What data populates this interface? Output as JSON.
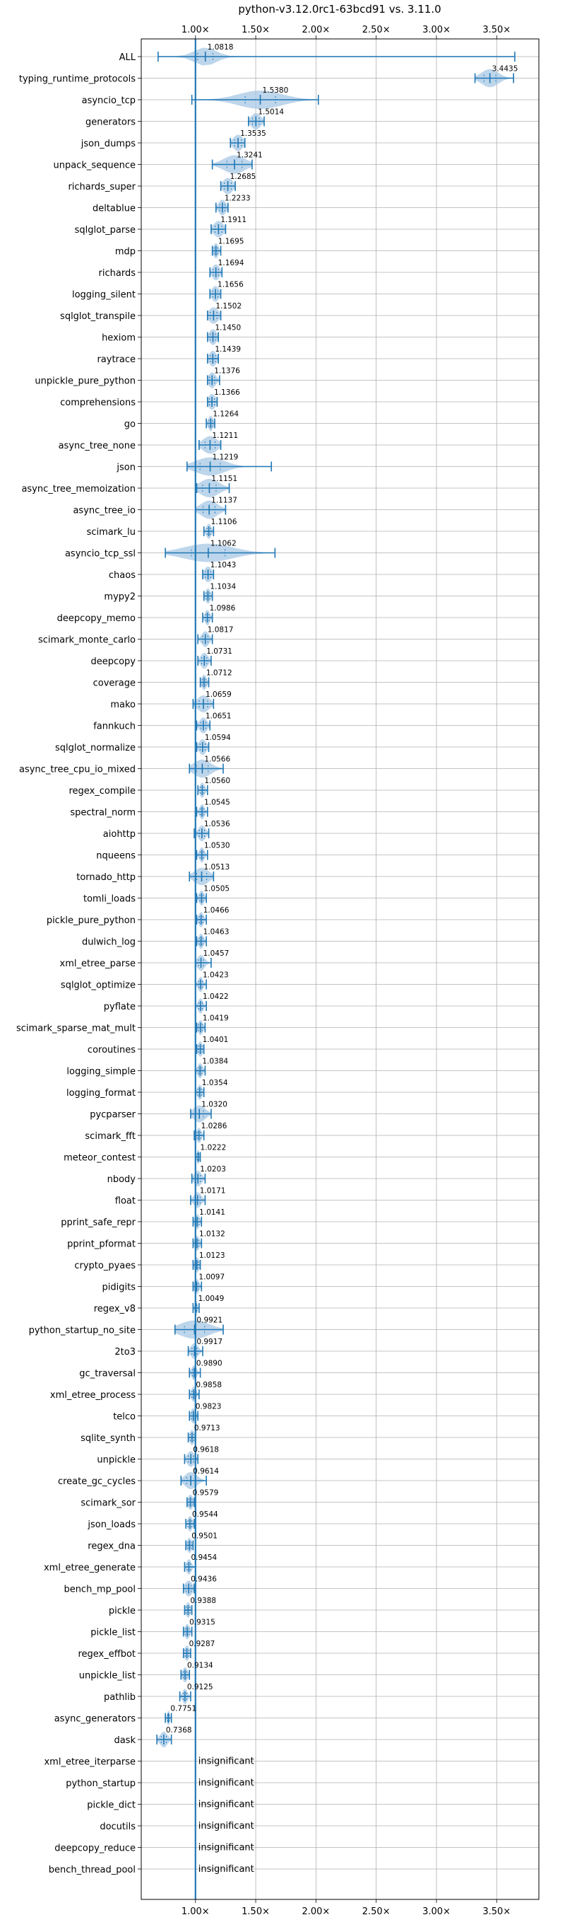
{
  "chart_data": {
    "type": "violin",
    "title": "python-v3.12.0rc1-63bcd91 vs. 3.11.0",
    "xlabel": "",
    "ylabel": "",
    "xlim": [
      0.55,
      3.85
    ],
    "grid": true,
    "reference_line": 1.0,
    "x_ticks": [
      {
        "value": 1.0,
        "label": "1.00×"
      },
      {
        "value": 1.5,
        "label": "1.50×"
      },
      {
        "value": 2.0,
        "label": "2.00×"
      },
      {
        "value": 2.5,
        "label": "2.50×"
      },
      {
        "value": 3.0,
        "label": "3.00×"
      },
      {
        "value": 3.5,
        "label": "3.50×"
      }
    ],
    "insignificant_label": "insignificant",
    "rows": [
      {
        "name": "ALL",
        "label": "1.0818",
        "mean": 1.0818,
        "min": 0.69,
        "max": 3.65,
        "spread": 0.09
      },
      {
        "name": "typing_runtime_protocols",
        "label": "3.4435",
        "mean": 3.4435,
        "min": 3.32,
        "max": 3.64,
        "spread": 0.07
      },
      {
        "name": "asyncio_tcp",
        "label": "1.5380",
        "mean": 1.538,
        "min": 0.97,
        "max": 2.02,
        "spread": 0.18
      },
      {
        "name": "generators",
        "label": "1.5014",
        "mean": 1.5014,
        "min": 1.44,
        "max": 1.57,
        "spread": 0.04
      },
      {
        "name": "json_dumps",
        "label": "1.3535",
        "mean": 1.3535,
        "min": 1.29,
        "max": 1.41,
        "spread": 0.04
      },
      {
        "name": "unpack_sequence",
        "label": "1.3241",
        "mean": 1.3241,
        "min": 1.14,
        "max": 1.47,
        "spread": 0.09
      },
      {
        "name": "richards_super",
        "label": "1.2685",
        "mean": 1.2685,
        "min": 1.21,
        "max": 1.33,
        "spread": 0.04
      },
      {
        "name": "deltablue",
        "label": "1.2233",
        "mean": 1.2233,
        "min": 1.17,
        "max": 1.27,
        "spread": 0.03
      },
      {
        "name": "sqlglot_parse",
        "label": "1.1911",
        "mean": 1.1911,
        "min": 1.13,
        "max": 1.25,
        "spread": 0.04
      },
      {
        "name": "mdp",
        "label": "1.1695",
        "mean": 1.1695,
        "min": 1.14,
        "max": 1.21,
        "spread": 0.02
      },
      {
        "name": "richards",
        "label": "1.1694",
        "mean": 1.1694,
        "min": 1.12,
        "max": 1.22,
        "spread": 0.03
      },
      {
        "name": "logging_silent",
        "label": "1.1656",
        "mean": 1.1656,
        "min": 1.12,
        "max": 1.21,
        "spread": 0.03
      },
      {
        "name": "sqlglot_transpile",
        "label": "1.1502",
        "mean": 1.1502,
        "min": 1.1,
        "max": 1.21,
        "spread": 0.04
      },
      {
        "name": "hexiom",
        "label": "1.1450",
        "mean": 1.145,
        "min": 1.1,
        "max": 1.19,
        "spread": 0.03
      },
      {
        "name": "raytrace",
        "label": "1.1439",
        "mean": 1.1439,
        "min": 1.1,
        "max": 1.19,
        "spread": 0.03
      },
      {
        "name": "unpickle_pure_python",
        "label": "1.1376",
        "mean": 1.1376,
        "min": 1.1,
        "max": 1.2,
        "spread": 0.03
      },
      {
        "name": "comprehensions",
        "label": "1.1366",
        "mean": 1.1366,
        "min": 1.1,
        "max": 1.18,
        "spread": 0.03
      },
      {
        "name": "go",
        "label": "1.1264",
        "mean": 1.1264,
        "min": 1.09,
        "max": 1.16,
        "spread": 0.02
      },
      {
        "name": "async_tree_none",
        "label": "1.1211",
        "mean": 1.1211,
        "min": 1.03,
        "max": 1.21,
        "spread": 0.06
      },
      {
        "name": "json",
        "label": "1.1219",
        "mean": 1.1219,
        "min": 0.93,
        "max": 1.63,
        "spread": 0.12
      },
      {
        "name": "async_tree_memoization",
        "label": "1.1151",
        "mean": 1.1151,
        "min": 1.01,
        "max": 1.28,
        "spread": 0.08
      },
      {
        "name": "async_tree_io",
        "label": "1.1137",
        "mean": 1.1137,
        "min": 1.0,
        "max": 1.25,
        "spread": 0.07
      },
      {
        "name": "scimark_lu",
        "label": "1.1106",
        "mean": 1.1106,
        "min": 1.07,
        "max": 1.15,
        "spread": 0.02
      },
      {
        "name": "asyncio_tcp_ssl",
        "label": "1.1062",
        "mean": 1.1062,
        "min": 0.75,
        "max": 1.66,
        "spread": 0.2
      },
      {
        "name": "chaos",
        "label": "1.1043",
        "mean": 1.1043,
        "min": 1.06,
        "max": 1.15,
        "spread": 0.03
      },
      {
        "name": "mypy2",
        "label": "1.1034",
        "mean": 1.1034,
        "min": 1.07,
        "max": 1.14,
        "spread": 0.02
      },
      {
        "name": "deepcopy_memo",
        "label": "1.0986",
        "mean": 1.0986,
        "min": 1.06,
        "max": 1.14,
        "spread": 0.02
      },
      {
        "name": "scimark_monte_carlo",
        "label": "1.0817",
        "mean": 1.0817,
        "min": 1.02,
        "max": 1.14,
        "spread": 0.03
      },
      {
        "name": "deepcopy",
        "label": "1.0731",
        "mean": 1.0731,
        "min": 1.02,
        "max": 1.13,
        "spread": 0.03
      },
      {
        "name": "coverage",
        "label": "1.0712",
        "mean": 1.0712,
        "min": 1.04,
        "max": 1.11,
        "spread": 0.02
      },
      {
        "name": "mako",
        "label": "1.0659",
        "mean": 1.0659,
        "min": 0.98,
        "max": 1.15,
        "spread": 0.05
      },
      {
        "name": "fannkuch",
        "label": "1.0651",
        "mean": 1.0651,
        "min": 1.01,
        "max": 1.12,
        "spread": 0.03
      },
      {
        "name": "sqlglot_normalize",
        "label": "1.0594",
        "mean": 1.0594,
        "min": 1.01,
        "max": 1.11,
        "spread": 0.03
      },
      {
        "name": "async_tree_cpu_io_mixed",
        "label": "1.0566",
        "mean": 1.0566,
        "min": 0.95,
        "max": 1.23,
        "spread": 0.07
      },
      {
        "name": "regex_compile",
        "label": "1.0560",
        "mean": 1.056,
        "min": 1.02,
        "max": 1.1,
        "spread": 0.02
      },
      {
        "name": "spectral_norm",
        "label": "1.0545",
        "mean": 1.0545,
        "min": 1.01,
        "max": 1.1,
        "spread": 0.02
      },
      {
        "name": "aiohttp",
        "label": "1.0536",
        "mean": 1.0536,
        "min": 0.99,
        "max": 1.11,
        "spread": 0.03
      },
      {
        "name": "nqueens",
        "label": "1.0530",
        "mean": 1.053,
        "min": 1.01,
        "max": 1.1,
        "spread": 0.02
      },
      {
        "name": "tornado_http",
        "label": "1.0513",
        "mean": 1.0513,
        "min": 0.95,
        "max": 1.15,
        "spread": 0.06
      },
      {
        "name": "tomli_loads",
        "label": "1.0505",
        "mean": 1.0505,
        "min": 1.01,
        "max": 1.09,
        "spread": 0.02
      },
      {
        "name": "pickle_pure_python",
        "label": "1.0466",
        "mean": 1.0466,
        "min": 1.01,
        "max": 1.09,
        "spread": 0.02
      },
      {
        "name": "dulwich_log",
        "label": "1.0463",
        "mean": 1.0463,
        "min": 1.01,
        "max": 1.09,
        "spread": 0.02
      },
      {
        "name": "xml_etree_parse",
        "label": "1.0457",
        "mean": 1.0457,
        "min": 1.0,
        "max": 1.13,
        "spread": 0.03
      },
      {
        "name": "sqlglot_optimize",
        "label": "1.0423",
        "mean": 1.0423,
        "min": 1.0,
        "max": 1.09,
        "spread": 0.02
      },
      {
        "name": "pyflate",
        "label": "1.0422",
        "mean": 1.0422,
        "min": 1.0,
        "max": 1.09,
        "spread": 0.02
      },
      {
        "name": "scimark_sparse_mat_mult",
        "label": "1.0419",
        "mean": 1.0419,
        "min": 1.01,
        "max": 1.08,
        "spread": 0.02
      },
      {
        "name": "coroutines",
        "label": "1.0401",
        "mean": 1.0401,
        "min": 1.01,
        "max": 1.07,
        "spread": 0.02
      },
      {
        "name": "logging_simple",
        "label": "1.0384",
        "mean": 1.0384,
        "min": 1.0,
        "max": 1.08,
        "spread": 0.02
      },
      {
        "name": "logging_format",
        "label": "1.0354",
        "mean": 1.0354,
        "min": 1.0,
        "max": 1.07,
        "spread": 0.02
      },
      {
        "name": "pycparser",
        "label": "1.0320",
        "mean": 1.032,
        "min": 0.96,
        "max": 1.13,
        "spread": 0.05
      },
      {
        "name": "scimark_fft",
        "label": "1.0286",
        "mean": 1.0286,
        "min": 0.99,
        "max": 1.07,
        "spread": 0.02
      },
      {
        "name": "meteor_contest",
        "label": "1.0222",
        "mean": 1.0222,
        "min": 1.0,
        "max": 1.04,
        "spread": 0.01
      },
      {
        "name": "nbody",
        "label": "1.0203",
        "mean": 1.0203,
        "min": 0.97,
        "max": 1.08,
        "spread": 0.03
      },
      {
        "name": "float",
        "label": "1.0171",
        "mean": 1.0171,
        "min": 0.96,
        "max": 1.08,
        "spread": 0.03
      },
      {
        "name": "pprint_safe_repr",
        "label": "1.0141",
        "mean": 1.0141,
        "min": 0.98,
        "max": 1.05,
        "spread": 0.02
      },
      {
        "name": "pprint_pformat",
        "label": "1.0132",
        "mean": 1.0132,
        "min": 0.98,
        "max": 1.05,
        "spread": 0.02
      },
      {
        "name": "crypto_pyaes",
        "label": "1.0123",
        "mean": 1.0123,
        "min": 0.98,
        "max": 1.04,
        "spread": 0.02
      },
      {
        "name": "pidigits",
        "label": "1.0097",
        "mean": 1.0097,
        "min": 0.98,
        "max": 1.05,
        "spread": 0.02
      },
      {
        "name": "regex_v8",
        "label": "1.0049",
        "mean": 1.0049,
        "min": 0.98,
        "max": 1.03,
        "spread": 0.01
      },
      {
        "name": "python_startup_no_site",
        "label": "0.9921",
        "mean": 0.9921,
        "min": 0.83,
        "max": 1.23,
        "spread": 0.12
      },
      {
        "name": "2to3",
        "label": "0.9917",
        "mean": 0.9917,
        "min": 0.94,
        "max": 1.06,
        "spread": 0.03
      },
      {
        "name": "gc_traversal",
        "label": "0.9890",
        "mean": 0.989,
        "min": 0.95,
        "max": 1.04,
        "spread": 0.02
      },
      {
        "name": "xml_etree_process",
        "label": "0.9858",
        "mean": 0.9858,
        "min": 0.95,
        "max": 1.03,
        "spread": 0.02
      },
      {
        "name": "telco",
        "label": "0.9823",
        "mean": 0.9823,
        "min": 0.95,
        "max": 1.02,
        "spread": 0.02
      },
      {
        "name": "sqlite_synth",
        "label": "0.9713",
        "mean": 0.9713,
        "min": 0.94,
        "max": 1.0,
        "spread": 0.02
      },
      {
        "name": "unpickle",
        "label": "0.9618",
        "mean": 0.9618,
        "min": 0.91,
        "max": 1.02,
        "spread": 0.03
      },
      {
        "name": "create_gc_cycles",
        "label": "0.9614",
        "mean": 0.9614,
        "min": 0.88,
        "max": 1.09,
        "spread": 0.05
      },
      {
        "name": "scimark_sor",
        "label": "0.9579",
        "mean": 0.9579,
        "min": 0.93,
        "max": 0.99,
        "spread": 0.02
      },
      {
        "name": "json_loads",
        "label": "0.9544",
        "mean": 0.9544,
        "min": 0.92,
        "max": 0.99,
        "spread": 0.02
      },
      {
        "name": "regex_dna",
        "label": "0.9501",
        "mean": 0.9501,
        "min": 0.92,
        "max": 0.98,
        "spread": 0.02
      },
      {
        "name": "xml_etree_generate",
        "label": "0.9454",
        "mean": 0.9454,
        "min": 0.91,
        "max": 1.0,
        "spread": 0.02
      },
      {
        "name": "bench_mp_pool",
        "label": "0.9436",
        "mean": 0.9436,
        "min": 0.9,
        "max": 0.99,
        "spread": 0.03
      },
      {
        "name": "pickle",
        "label": "0.9388",
        "mean": 0.9388,
        "min": 0.91,
        "max": 0.97,
        "spread": 0.02
      },
      {
        "name": "pickle_list",
        "label": "0.9315",
        "mean": 0.9315,
        "min": 0.9,
        "max": 0.97,
        "spread": 0.02
      },
      {
        "name": "regex_effbot",
        "label": "0.9287",
        "mean": 0.9287,
        "min": 0.9,
        "max": 0.96,
        "spread": 0.02
      },
      {
        "name": "unpickle_list",
        "label": "0.9134",
        "mean": 0.9134,
        "min": 0.88,
        "max": 0.95,
        "spread": 0.02
      },
      {
        "name": "pathlib",
        "label": "0.9125",
        "mean": 0.9125,
        "min": 0.87,
        "max": 0.96,
        "spread": 0.02
      },
      {
        "name": "async_generators",
        "label": "0.7751",
        "mean": 0.7751,
        "min": 0.75,
        "max": 0.8,
        "spread": 0.01
      },
      {
        "name": "dask",
        "label": "0.7368",
        "mean": 0.7368,
        "min": 0.68,
        "max": 0.8,
        "spread": 0.03
      },
      {
        "name": "xml_etree_iterparse",
        "label": "insignificant",
        "insignificant": true
      },
      {
        "name": "python_startup",
        "label": "insignificant",
        "insignificant": true
      },
      {
        "name": "pickle_dict",
        "label": "insignificant",
        "insignificant": true
      },
      {
        "name": "docutils",
        "label": "insignificant",
        "insignificant": true
      },
      {
        "name": "deepcopy_reduce",
        "label": "insignificant",
        "insignificant": true
      },
      {
        "name": "bench_thread_pool",
        "label": "insignificant",
        "insignificant": true
      }
    ]
  },
  "colors": {
    "line": "#1f77b4",
    "violin": "#a8c8e4",
    "grid": "#b0b0b0",
    "axis": "#000000",
    "text": "#000000"
  }
}
